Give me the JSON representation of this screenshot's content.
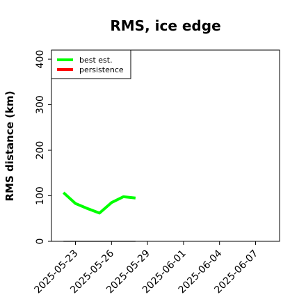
{
  "chart_data": {
    "type": "line",
    "title": "RMS, ice edge",
    "xlabel": "",
    "ylabel": "RMS distance (km)",
    "x_axis_type": "date",
    "xlim": [
      "2025-05-21",
      "2025-06-09"
    ],
    "ylim": [
      0,
      420
    ],
    "y_ticks": [
      0,
      100,
      200,
      300,
      400
    ],
    "x_ticks": [
      "2025-05-23",
      "2025-05-26",
      "2025-05-29",
      "2025-06-01",
      "2025-06-04",
      "2025-06-07"
    ],
    "grid": false,
    "legend_position": "top-left",
    "series": [
      {
        "name": "best est.",
        "color": "#00ff00",
        "x": [
          "2025-05-22",
          "2025-05-23",
          "2025-05-24",
          "2025-05-25",
          "2025-05-26",
          "2025-05-27",
          "2025-05-28"
        ],
        "values": [
          107,
          83,
          72,
          62,
          85,
          98,
          95
        ]
      },
      {
        "name": "persistence",
        "color": "#ff0000",
        "x": [],
        "values": []
      }
    ],
    "reference_line": {
      "color": "#808080",
      "x": [
        "2025-05-22",
        "2025-05-28"
      ],
      "values": [
        0,
        0
      ]
    }
  }
}
